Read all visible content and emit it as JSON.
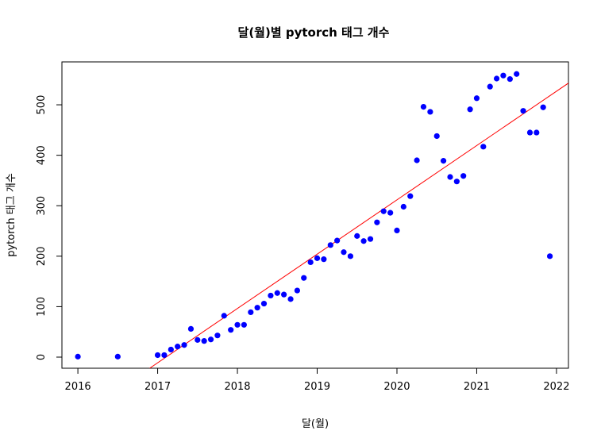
{
  "chart_data": {
    "type": "scatter",
    "title": "달(월)별 pytorch 태그 개수",
    "xlabel": "달(월)",
    "ylabel": "pytorch 태그 개수",
    "xlim": [
      2015.8,
      2022.15
    ],
    "ylim": [
      -22,
      585
    ],
    "xticks": [
      2016,
      2017,
      2018,
      2019,
      2020,
      2021,
      2022
    ],
    "yticks": [
      0,
      100,
      200,
      300,
      400,
      500
    ],
    "grid": false,
    "point_color": "#0000ff",
    "line_color": "#ff0000",
    "trend_line": {
      "x": [
        2016.9,
        2022.15
      ],
      "y": [
        -22,
        543
      ]
    },
    "points": {
      "x": [
        2016.0,
        2016.5,
        2017.0,
        2017.083,
        2017.167,
        2017.25,
        2017.333,
        2017.417,
        2017.5,
        2017.583,
        2017.667,
        2017.75,
        2017.833,
        2017.917,
        2018.0,
        2018.083,
        2018.167,
        2018.25,
        2018.333,
        2018.417,
        2018.5,
        2018.583,
        2018.667,
        2018.75,
        2018.833,
        2018.917,
        2019.0,
        2019.083,
        2019.167,
        2019.25,
        2019.333,
        2019.417,
        2019.5,
        2019.583,
        2019.667,
        2019.75,
        2019.833,
        2019.917,
        2020.0,
        2020.083,
        2020.167,
        2020.25,
        2020.333,
        2020.417,
        2020.5,
        2020.583,
        2020.667,
        2020.75,
        2020.833,
        2020.917,
        2021.0,
        2021.083,
        2021.167,
        2021.25,
        2021.333,
        2021.417,
        2021.5,
        2021.583,
        2021.667,
        2021.75,
        2021.833,
        2021.917
      ],
      "y": [
        1,
        1,
        4,
        4,
        15,
        21,
        24,
        56,
        34,
        32,
        35,
        43,
        82,
        54,
        64,
        64,
        89,
        98,
        106,
        122,
        127,
        124,
        115,
        132,
        157,
        188,
        196,
        194,
        222,
        231,
        208,
        200,
        240,
        230,
        234,
        267,
        289,
        286,
        251,
        298,
        319,
        390,
        496,
        486,
        438,
        389,
        357,
        348,
        359,
        491,
        513,
        417,
        536,
        552,
        558,
        551,
        561,
        488,
        445,
        445,
        495,
        200
      ]
    }
  }
}
